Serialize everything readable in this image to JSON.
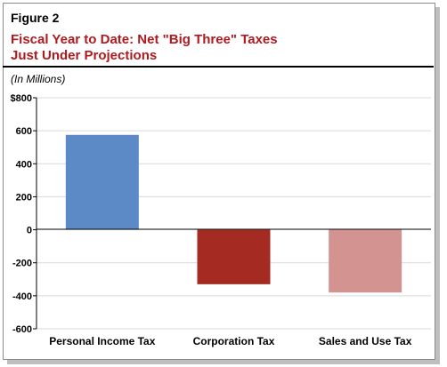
{
  "figure_label": "Figure 2",
  "title_line1": "Fiscal  Year to Date: Net \"Big Three\" Taxes",
  "title_line2": "Just Under Projections",
  "units": "(In Millions)",
  "colors": {
    "title": "#b0191e",
    "personal_income_tax": "#5b8ac6",
    "corporation_tax": "#a42a22",
    "sales_and_use_tax": "#d39391",
    "gridline": "#d9d9d9"
  },
  "chart_data": {
    "type": "bar",
    "title": "Fiscal  Year to Date: Net \"Big Three\" Taxes Just Under Projections",
    "ylabel": "(In Millions)",
    "xlabel": "",
    "categories": [
      "Personal Income Tax",
      "Corporation Tax",
      "Sales and Use Tax"
    ],
    "values": [
      575,
      -330,
      -380
    ],
    "ylim": [
      -600,
      800
    ],
    "yticks": [
      -600,
      -400,
      -200,
      0,
      200,
      400,
      600,
      800
    ],
    "ytick_labels": [
      "-600",
      "-400",
      "-200",
      "0",
      "200",
      "400",
      "600",
      "$800"
    ],
    "grid": true,
    "legend": "none"
  }
}
